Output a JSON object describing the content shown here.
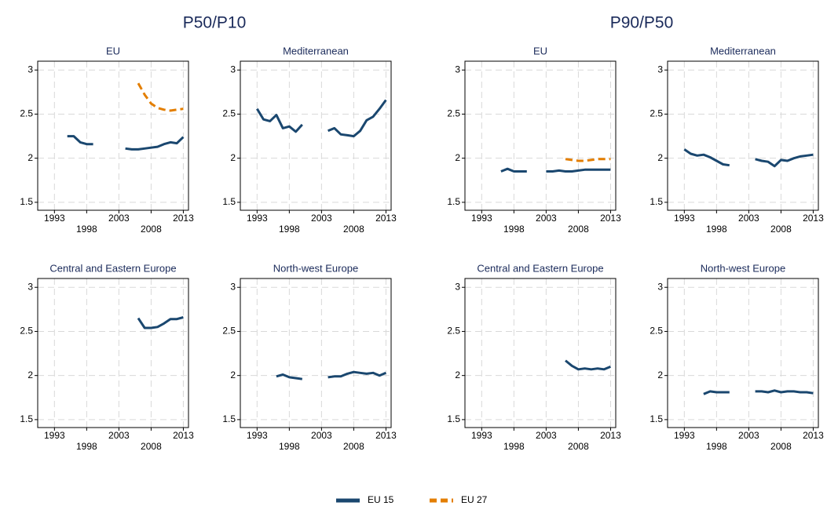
{
  "group_titles": [
    "P50/P10",
    "P90/P50"
  ],
  "chart_data": [
    {
      "type": "line",
      "title": "EU",
      "x": [
        1993,
        1994,
        1995,
        1996,
        1997,
        1998,
        1999,
        2000,
        2001,
        2002,
        2003,
        2004,
        2005,
        2006,
        2007,
        2008,
        2009,
        2010,
        2011,
        2012,
        2013
      ],
      "xlim": [
        1990.4,
        2013.8
      ],
      "xticks": [
        1993,
        1998,
        2003,
        2008,
        2013
      ],
      "ylim": [
        1.41,
        3.1
      ],
      "yticks": [
        1.5,
        2,
        2.5,
        3
      ],
      "grid": true,
      "series": [
        {
          "name": "EU 15",
          "color": "#1a476f",
          "dashed": false,
          "values": [
            null,
            null,
            2.25,
            2.25,
            2.18,
            2.16,
            2.16,
            null,
            null,
            null,
            null,
            2.11,
            2.1,
            2.1,
            2.11,
            2.12,
            2.13,
            2.16,
            2.18,
            2.17,
            2.24
          ]
        },
        {
          "name": "EU 27",
          "color": "#e37e00",
          "dashed": true,
          "values": [
            null,
            null,
            null,
            null,
            null,
            null,
            null,
            null,
            null,
            null,
            null,
            null,
            null,
            2.85,
            2.72,
            2.62,
            2.57,
            2.55,
            2.54,
            2.55,
            2.56
          ]
        }
      ]
    },
    {
      "type": "line",
      "title": "Mediterranean",
      "x": [
        1993,
        1994,
        1995,
        1996,
        1997,
        1998,
        1999,
        2000,
        2001,
        2002,
        2003,
        2004,
        2005,
        2006,
        2007,
        2008,
        2009,
        2010,
        2011,
        2012,
        2013
      ],
      "xlim": [
        1990.4,
        2013.8
      ],
      "xticks": [
        1993,
        1998,
        2003,
        2008,
        2013
      ],
      "ylim": [
        1.41,
        3.1
      ],
      "yticks": [
        1.5,
        2,
        2.5,
        3
      ],
      "grid": true,
      "series": [
        {
          "name": "EU 15",
          "color": "#1a476f",
          "dashed": false,
          "values": [
            2.56,
            2.44,
            2.42,
            2.49,
            2.34,
            2.36,
            2.3,
            2.38,
            null,
            null,
            null,
            2.31,
            2.34,
            2.27,
            2.26,
            2.25,
            2.31,
            2.43,
            2.47,
            2.56,
            2.66
          ]
        }
      ]
    },
    {
      "type": "line",
      "title": "Central and Eastern Europe",
      "x": [
        1993,
        1994,
        1995,
        1996,
        1997,
        1998,
        1999,
        2000,
        2001,
        2002,
        2003,
        2004,
        2005,
        2006,
        2007,
        2008,
        2009,
        2010,
        2011,
        2012,
        2013
      ],
      "xlim": [
        1990.4,
        2013.8
      ],
      "xticks": [
        1993,
        1998,
        2003,
        2008,
        2013
      ],
      "ylim": [
        1.41,
        3.1
      ],
      "yticks": [
        1.5,
        2,
        2.5,
        3
      ],
      "grid": true,
      "series": [
        {
          "name": "EU 15",
          "color": "#1a476f",
          "dashed": false,
          "values": [
            null,
            null,
            null,
            null,
            null,
            null,
            null,
            null,
            null,
            null,
            null,
            null,
            null,
            2.65,
            2.54,
            2.54,
            2.55,
            2.59,
            2.64,
            2.64,
            2.66
          ]
        }
      ]
    },
    {
      "type": "line",
      "title": "North-west Europe",
      "x": [
        1993,
        1994,
        1995,
        1996,
        1997,
        1998,
        1999,
        2000,
        2001,
        2002,
        2003,
        2004,
        2005,
        2006,
        2007,
        2008,
        2009,
        2010,
        2011,
        2012,
        2013
      ],
      "xlim": [
        1990.4,
        2013.8
      ],
      "xticks": [
        1993,
        1998,
        2003,
        2008,
        2013
      ],
      "ylim": [
        1.41,
        3.1
      ],
      "yticks": [
        1.5,
        2,
        2.5,
        3
      ],
      "grid": true,
      "series": [
        {
          "name": "EU 15",
          "color": "#1a476f",
          "dashed": false,
          "values": [
            null,
            null,
            null,
            1.99,
            2.01,
            1.98,
            1.97,
            1.96,
            null,
            null,
            null,
            1.98,
            1.99,
            1.99,
            2.02,
            2.04,
            2.03,
            2.02,
            2.03,
            2.0,
            2.03
          ]
        }
      ]
    },
    {
      "type": "line",
      "title": "EU",
      "x": [
        1993,
        1994,
        1995,
        1996,
        1997,
        1998,
        1999,
        2000,
        2001,
        2002,
        2003,
        2004,
        2005,
        2006,
        2007,
        2008,
        2009,
        2010,
        2011,
        2012,
        2013
      ],
      "xlim": [
        1990.4,
        2013.8
      ],
      "xticks": [
        1993,
        1998,
        2003,
        2008,
        2013
      ],
      "ylim": [
        1.41,
        3.1
      ],
      "yticks": [
        1.5,
        2,
        2.5,
        3
      ],
      "grid": true,
      "series": [
        {
          "name": "EU 15",
          "color": "#1a476f",
          "dashed": false,
          "values": [
            null,
            null,
            null,
            1.85,
            1.88,
            1.85,
            1.85,
            1.85,
            null,
            null,
            1.85,
            1.85,
            1.86,
            1.85,
            1.85,
            1.86,
            1.87,
            1.87,
            1.87,
            1.87,
            1.87
          ]
        },
        {
          "name": "EU 27",
          "color": "#e37e00",
          "dashed": true,
          "values": [
            null,
            null,
            null,
            null,
            null,
            null,
            null,
            null,
            null,
            null,
            null,
            null,
            null,
            1.99,
            1.98,
            1.97,
            1.97,
            1.98,
            1.99,
            1.99,
            1.99
          ]
        }
      ]
    },
    {
      "type": "line",
      "title": "Mediterranean",
      "x": [
        1993,
        1994,
        1995,
        1996,
        1997,
        1998,
        1999,
        2000,
        2001,
        2002,
        2003,
        2004,
        2005,
        2006,
        2007,
        2008,
        2009,
        2010,
        2011,
        2012,
        2013
      ],
      "xlim": [
        1990.4,
        2013.8
      ],
      "xticks": [
        1993,
        1998,
        2003,
        2008,
        2013
      ],
      "ylim": [
        1.41,
        3.1
      ],
      "yticks": [
        1.5,
        2,
        2.5,
        3
      ],
      "grid": true,
      "series": [
        {
          "name": "EU 15",
          "color": "#1a476f",
          "dashed": false,
          "values": [
            2.1,
            2.05,
            2.03,
            2.04,
            2.01,
            1.97,
            1.93,
            1.92,
            null,
            null,
            null,
            1.99,
            1.97,
            1.96,
            1.91,
            1.98,
            1.97,
            2.0,
            2.02,
            2.03,
            2.04
          ]
        }
      ]
    },
    {
      "type": "line",
      "title": "Central and Eastern Europe",
      "x": [
        1993,
        1994,
        1995,
        1996,
        1997,
        1998,
        1999,
        2000,
        2001,
        2002,
        2003,
        2004,
        2005,
        2006,
        2007,
        2008,
        2009,
        2010,
        2011,
        2012,
        2013
      ],
      "xlim": [
        1990.4,
        2013.8
      ],
      "xticks": [
        1993,
        1998,
        2003,
        2008,
        2013
      ],
      "ylim": [
        1.41,
        3.1
      ],
      "yticks": [
        1.5,
        2,
        2.5,
        3
      ],
      "grid": true,
      "series": [
        {
          "name": "EU 15",
          "color": "#1a476f",
          "dashed": false,
          "values": [
            null,
            null,
            null,
            null,
            null,
            null,
            null,
            null,
            null,
            null,
            null,
            null,
            null,
            2.17,
            2.11,
            2.07,
            2.08,
            2.07,
            2.08,
            2.07,
            2.1
          ]
        }
      ]
    },
    {
      "type": "line",
      "title": "North-west Europe",
      "x": [
        1993,
        1994,
        1995,
        1996,
        1997,
        1998,
        1999,
        2000,
        2001,
        2002,
        2003,
        2004,
        2005,
        2006,
        2007,
        2008,
        2009,
        2010,
        2011,
        2012,
        2013
      ],
      "xlim": [
        1990.4,
        2013.8
      ],
      "xticks": [
        1993,
        1998,
        2003,
        2008,
        2013
      ],
      "ylim": [
        1.41,
        3.1
      ],
      "yticks": [
        1.5,
        2,
        2.5,
        3
      ],
      "grid": true,
      "series": [
        {
          "name": "EU 15",
          "color": "#1a476f",
          "dashed": false,
          "values": [
            null,
            null,
            null,
            1.79,
            1.82,
            1.81,
            1.81,
            1.81,
            null,
            null,
            null,
            1.82,
            1.82,
            1.81,
            1.83,
            1.81,
            1.82,
            1.82,
            1.81,
            1.81,
            1.8
          ]
        }
      ]
    }
  ]
}
